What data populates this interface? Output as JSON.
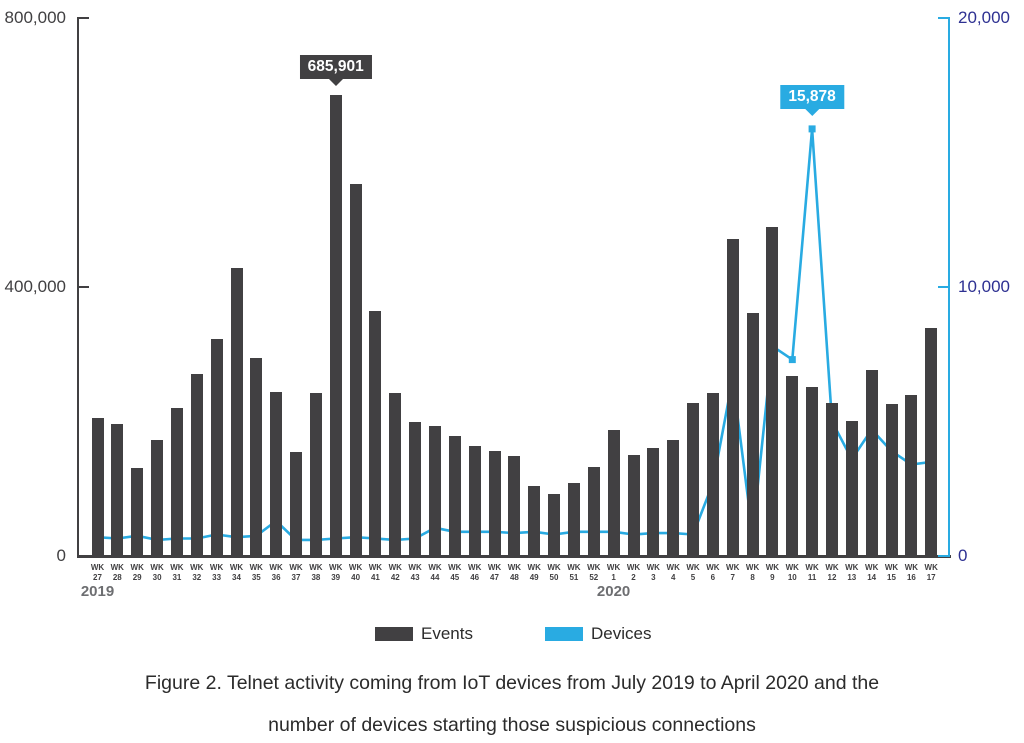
{
  "colors": {
    "events_bar": "#414042",
    "devices_line": "#29ABE2",
    "left_axis_text": "#414042",
    "right_axis_text": "#2E3192",
    "year_text": "#6D6E71",
    "caption_text": "#2B2B2B"
  },
  "legend": {
    "events_label": "Events",
    "devices_label": "Devices"
  },
  "caption": {
    "line1": "Figure 2. Telnet activity coming from IoT devices from July 2019 to April 2020 and the",
    "line2": "number of devices starting those suspicious connections"
  },
  "chart_data": {
    "type": "bar+line dual-axis combo",
    "x_prefix": "WK",
    "categories": [
      "27",
      "28",
      "29",
      "30",
      "31",
      "32",
      "33",
      "34",
      "35",
      "36",
      "37",
      "38",
      "39",
      "40",
      "41",
      "42",
      "43",
      "44",
      "45",
      "46",
      "47",
      "48",
      "49",
      "50",
      "51",
      "52",
      "1",
      "2",
      "3",
      "4",
      "5",
      "6",
      "7",
      "8",
      "9",
      "10",
      "11",
      "12",
      "13",
      "14",
      "15",
      "16",
      "17"
    ],
    "year_markers": [
      {
        "label": "2019",
        "index": 0
      },
      {
        "label": "2020",
        "index": 26
      }
    ],
    "left_axis": {
      "series": "Events",
      "min": 0,
      "max": 800000,
      "tick_labels": [
        "800,000",
        "400,000",
        "0"
      ]
    },
    "right_axis": {
      "series": "Devices",
      "min": 0,
      "max": 20000,
      "tick_labels": [
        "20,000",
        "10,000",
        "0"
      ]
    },
    "series": [
      {
        "name": "Events",
        "type": "bar",
        "axis": "left",
        "color": "#414042",
        "values": [
          206000,
          197000,
          131000,
          173000,
          220000,
          271000,
          323000,
          429000,
          295000,
          244000,
          154000,
          243000,
          685901,
          553000,
          364000,
          243000,
          199000,
          193000,
          178000,
          163000,
          156000,
          149000,
          104000,
          92000,
          109000,
          133000,
          187000,
          151000,
          161000,
          172000,
          227000,
          242000,
          472000,
          361000,
          490000,
          267000,
          251000,
          227000,
          201000,
          276000,
          226000,
          240000,
          339000
        ]
      },
      {
        "name": "Devices",
        "type": "line",
        "axis": "right",
        "color": "#29ABE2",
        "values": [
          700,
          650,
          750,
          600,
          650,
          650,
          800,
          700,
          750,
          1300,
          600,
          600,
          650,
          700,
          650,
          600,
          650,
          1050,
          900,
          900,
          900,
          850,
          900,
          800,
          900,
          900,
          900,
          800,
          850,
          850,
          800,
          2700,
          6600,
          800,
          7800,
          7300,
          15878,
          5000,
          3600,
          4700,
          3900,
          3400,
          3500
        ]
      }
    ],
    "annotations": [
      {
        "series": "Events",
        "index": 12,
        "label": "685,901"
      },
      {
        "series": "Devices",
        "index": 36,
        "label": "15,878"
      }
    ],
    "legend_position": "bottom",
    "grid": false
  }
}
